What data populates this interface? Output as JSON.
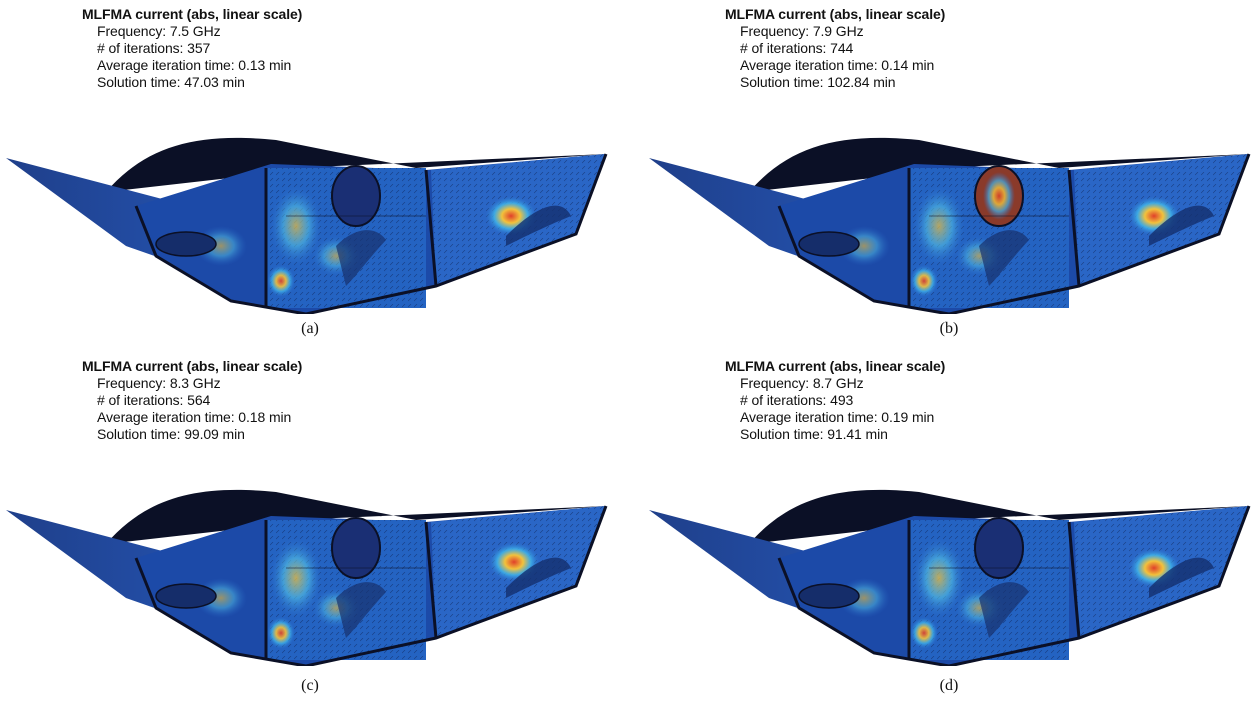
{
  "panels": [
    {
      "title": "MLFMA current (abs, linear scale)",
      "frequency": "Frequency: 7.5 GHz",
      "iterations": "# of iterations: 357",
      "avg_time": "Average iteration time: 0.13 min",
      "solution_time": "Solution time: 47.03 min",
      "caption": "(a)"
    },
    {
      "title": "MLFMA current (abs, linear scale)",
      "frequency": "Frequency: 7.9 GHz",
      "iterations": "# of iterations: 744",
      "avg_time": "Average iteration time: 0.14 min",
      "solution_time": "Solution time: 102.84 min",
      "caption": "(b)"
    },
    {
      "title": "MLFMA current (abs, linear scale)",
      "frequency": "Frequency: 8.3 GHz",
      "iterations": "# of iterations: 564",
      "avg_time": "Average iteration time: 0.18 min",
      "solution_time": "Solution time: 99.09 min",
      "caption": "(c)"
    },
    {
      "title": "MLFMA current (abs, linear scale)",
      "frequency": "Frequency: 8.7 GHz",
      "iterations": "# of iterations: 493",
      "avg_time": "Average iteration time: 0.19 min",
      "solution_time": "Solution time: 91.41 min",
      "caption": "(d)"
    }
  ],
  "colors": {
    "body_dark": "#0b1026",
    "field_low": "#1a3f9e",
    "field_mid": "#2f8fe0",
    "field_high": "#e0402a",
    "field_warm": "#f2c23c"
  }
}
